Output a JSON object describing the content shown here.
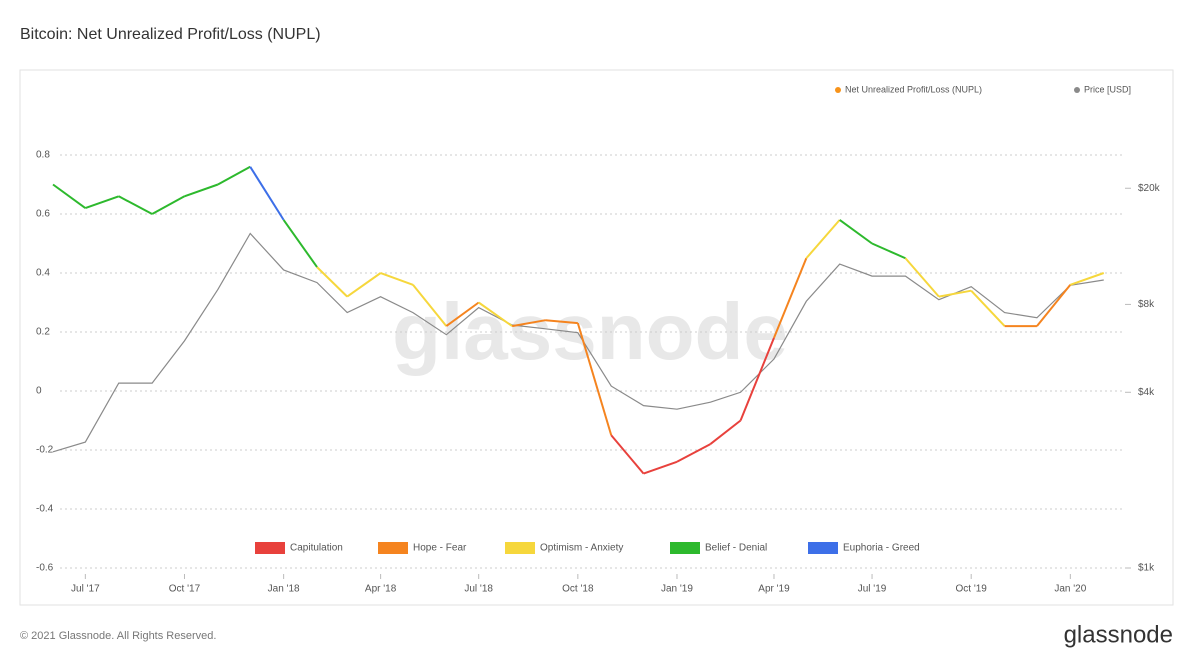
{
  "chart_data": {
    "type": "nupl-line",
    "title": "Bitcoin: Net Unrealized Profit/Loss (NUPL)",
    "watermark": "glassnode",
    "footer": "© 2021 Glassnode. All Rights Reserved.",
    "brand": "glassnode",
    "x": [
      "2017-06",
      "2017-07",
      "2017-08",
      "2017-09",
      "2017-10",
      "2017-11",
      "2017-12",
      "2018-01",
      "2018-02",
      "2018-03",
      "2018-04",
      "2018-05",
      "2018-06",
      "2018-07",
      "2018-08",
      "2018-09",
      "2018-10",
      "2018-11",
      "2018-12",
      "2019-01",
      "2019-02",
      "2019-03",
      "2019-04",
      "2019-05",
      "2019-06",
      "2019-07",
      "2019-08",
      "2019-09",
      "2019-10",
      "2019-11",
      "2019-12",
      "2020-01",
      "2020-02"
    ],
    "xlim": [
      "2017-06",
      "2020-03"
    ],
    "xticks": [
      {
        "value": "2017-07",
        "label": "Jul '17"
      },
      {
        "value": "2017-10",
        "label": "Oct '17"
      },
      {
        "value": "2018-01",
        "label": "Jan '18"
      },
      {
        "value": "2018-04",
        "label": "Apr '18"
      },
      {
        "value": "2018-07",
        "label": "Jul '18"
      },
      {
        "value": "2018-10",
        "label": "Oct '18"
      },
      {
        "value": "2019-01",
        "label": "Jan '19"
      },
      {
        "value": "2019-04",
        "label": "Apr '19"
      },
      {
        "value": "2019-07",
        "label": "Jul '19"
      },
      {
        "value": "2019-10",
        "label": "Oct '19"
      },
      {
        "value": "2020-01",
        "label": "Jan '20"
      }
    ],
    "ylim": [
      -0.6,
      0.8
    ],
    "yticks": [
      -0.6,
      -0.4,
      -0.2,
      0,
      0.2,
      0.4,
      0.6,
      0.8
    ],
    "y2lim": [
      1000,
      26000
    ],
    "y2log": true,
    "y2ticks": [
      {
        "value": 1000,
        "label": "$1k"
      },
      {
        "value": 4000,
        "label": "$4k"
      },
      {
        "value": 8000,
        "label": "$8k"
      },
      {
        "value": 20000,
        "label": "$20k"
      }
    ],
    "grid": true,
    "legend": "top-right",
    "series": [
      {
        "name": "Net Unrealized Profit/Loss (NUPL)",
        "color": "#f7931a",
        "values": [
          0.7,
          0.62,
          0.66,
          0.6,
          0.66,
          0.7,
          0.76,
          0.58,
          0.42,
          0.32,
          0.4,
          0.36,
          0.22,
          0.3,
          0.22,
          0.24,
          0.23,
          -0.15,
          -0.28,
          -0.24,
          -0.18,
          -0.1,
          0.18,
          0.45,
          0.58,
          0.5,
          0.45,
          0.32,
          0.34,
          0.22,
          0.22,
          0.36,
          0.4
        ]
      },
      {
        "name": "Price [USD]",
        "color": "#8a8a8a",
        "axis": "y2",
        "values": [
          2500,
          2700,
          4300,
          4300,
          6000,
          9000,
          14000,
          10500,
          9500,
          7500,
          8500,
          7500,
          6300,
          7800,
          6800,
          6600,
          6400,
          4200,
          3600,
          3500,
          3700,
          4000,
          5200,
          8200,
          11000,
          10000,
          10000,
          8300,
          9200,
          7500,
          7200,
          9300,
          9700
        ]
      }
    ],
    "zones": [
      {
        "name": "Capitulation",
        "color": "#e8413c",
        "range": [
          null,
          0
        ]
      },
      {
        "name": "Hope - Fear",
        "color": "#f5841f",
        "range": [
          0,
          0.25
        ]
      },
      {
        "name": "Optimism - Anxiety",
        "color": "#f6d73c",
        "range": [
          0.25,
          0.5
        ]
      },
      {
        "name": "Belief - Denial",
        "color": "#2db92d",
        "range": [
          0.5,
          0.75
        ]
      },
      {
        "name": "Euphoria - Greed",
        "color": "#3d6fe8",
        "range": [
          0.75,
          null
        ]
      }
    ]
  }
}
